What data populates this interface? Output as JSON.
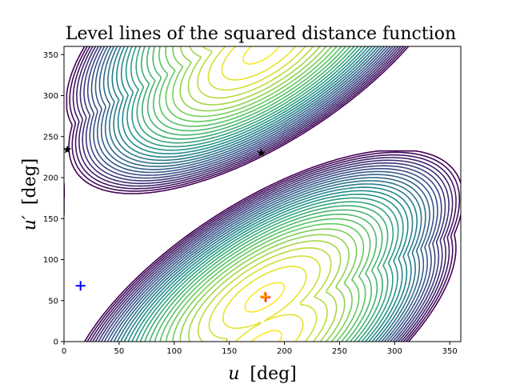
{
  "chart_data": {
    "type": "contour",
    "title": "Level lines of the squared distance function",
    "xlabel_var": "u",
    "xlabel_unit": "[deg]",
    "ylabel_var": "u′",
    "ylabel_unit": "[deg]",
    "xlim": [
      0,
      360
    ],
    "ylim": [
      0,
      360
    ],
    "xticks": [
      0,
      50,
      100,
      150,
      200,
      250,
      300,
      350
    ],
    "yticks": [
      0,
      50,
      100,
      150,
      200,
      250,
      300,
      350
    ],
    "grid": false,
    "colormap": [
      "#440154",
      "#3b528b",
      "#21918c",
      "#5ec962",
      "#fde725"
    ],
    "minima": [
      {
        "x": 182,
        "y": 54
      },
      {
        "x": 180,
        "y": 356
      }
    ],
    "markers": [
      {
        "kind": "star",
        "x": 3,
        "y": 234,
        "color": "#000000"
      },
      {
        "kind": "star",
        "x": 179,
        "y": 230,
        "color": "#000000"
      },
      {
        "kind": "plus",
        "x": 15,
        "y": 68,
        "color": "#0000ff"
      },
      {
        "kind": "plus",
        "x": 183,
        "y": 54,
        "color": "#ff0000"
      },
      {
        "kind": "plus",
        "x": 182,
        "y": 55,
        "color": "#ffa500"
      }
    ]
  }
}
